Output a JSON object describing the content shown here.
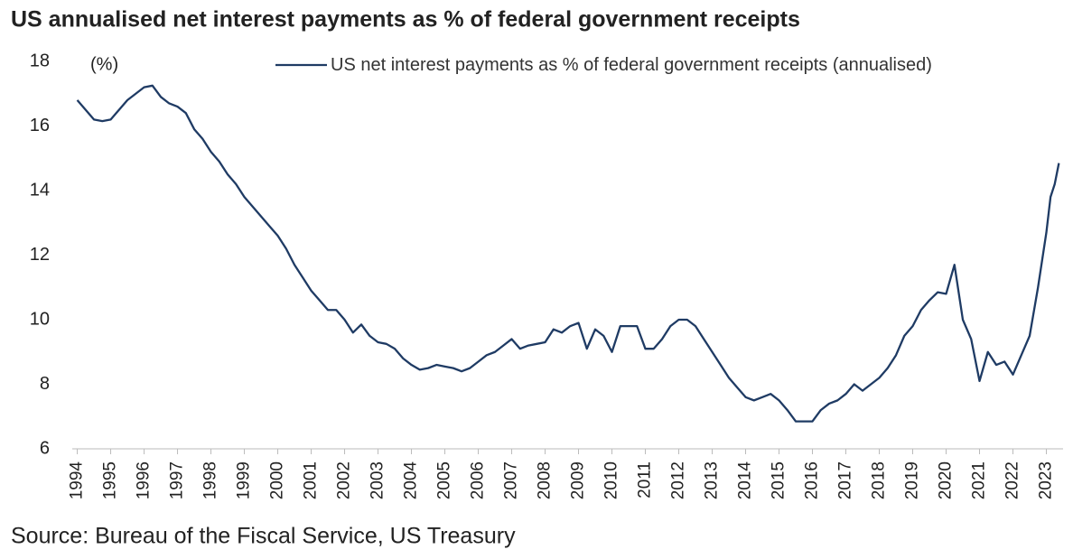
{
  "chart_data": {
    "type": "line",
    "title": "US annualised net interest payments as % of federal government receipts",
    "y_unit": "(%)",
    "source": "Source: Bureau of the Fiscal Service, US Treasury",
    "x": [
      1994,
      1994.25,
      1994.5,
      1994.75,
      1995,
      1995.25,
      1995.5,
      1995.75,
      1996,
      1996.25,
      1996.5,
      1996.75,
      1997,
      1997.25,
      1997.5,
      1997.75,
      1998,
      1998.25,
      1998.5,
      1998.75,
      1999,
      1999.25,
      1999.5,
      1999.75,
      2000,
      2000.25,
      2000.5,
      2000.75,
      2001,
      2001.25,
      2001.5,
      2001.75,
      2002,
      2002.25,
      2002.5,
      2002.75,
      2003,
      2003.25,
      2003.5,
      2003.75,
      2004,
      2004.25,
      2004.5,
      2004.75,
      2005,
      2005.25,
      2005.5,
      2005.75,
      2006,
      2006.25,
      2006.5,
      2006.75,
      2007,
      2007.25,
      2007.5,
      2007.75,
      2008,
      2008.25,
      2008.5,
      2008.75,
      2009,
      2009.25,
      2009.5,
      2009.75,
      2010,
      2010.25,
      2010.5,
      2010.75,
      2011,
      2011.25,
      2011.5,
      2011.75,
      2012,
      2012.25,
      2012.5,
      2012.75,
      2013,
      2013.25,
      2013.5,
      2013.75,
      2014,
      2014.25,
      2014.5,
      2014.75,
      2015,
      2015.25,
      2015.5,
      2015.75,
      2016,
      2016.25,
      2016.5,
      2016.75,
      2017,
      2017.25,
      2017.5,
      2017.75,
      2018,
      2018.25,
      2018.5,
      2018.75,
      2019,
      2019.25,
      2019.5,
      2019.75,
      2020,
      2020.25,
      2020.5,
      2020.75,
      2021,
      2021.25,
      2021.5,
      2021.75,
      2022,
      2022.25,
      2022.5,
      2022.75,
      2023,
      2023.125,
      2023.25,
      2023.375
    ],
    "series": [
      {
        "name": "US net interest payments as % of federal government receipts (annualised)",
        "color": "#1f3b64",
        "values": [
          16.8,
          16.5,
          16.2,
          16.15,
          16.2,
          16.5,
          16.8,
          17.0,
          17.2,
          17.25,
          16.9,
          16.7,
          16.6,
          16.4,
          15.9,
          15.6,
          15.2,
          14.9,
          14.5,
          14.2,
          13.8,
          13.5,
          13.2,
          12.9,
          12.6,
          12.2,
          11.7,
          11.3,
          10.9,
          10.6,
          10.3,
          10.3,
          10.0,
          9.6,
          9.85,
          9.5,
          9.3,
          9.25,
          9.1,
          8.8,
          8.6,
          8.45,
          8.5,
          8.6,
          8.55,
          8.5,
          8.4,
          8.5,
          8.7,
          8.9,
          9.0,
          9.2,
          9.4,
          9.1,
          9.2,
          9.25,
          9.3,
          9.7,
          9.6,
          9.8,
          9.9,
          9.1,
          9.7,
          9.5,
          9.0,
          9.8,
          9.8,
          9.8,
          9.1,
          9.1,
          9.4,
          9.8,
          10.0,
          10.0,
          9.8,
          9.4,
          9.0,
          8.6,
          8.2,
          7.9,
          7.6,
          7.5,
          7.6,
          7.7,
          7.5,
          7.2,
          6.85,
          6.85,
          6.85,
          7.2,
          7.4,
          7.5,
          7.7,
          8.0,
          7.8,
          8.0,
          8.2,
          8.5,
          8.9,
          9.5,
          9.8,
          10.3,
          10.6,
          10.85,
          10.8,
          11.7,
          10.0,
          9.4,
          8.1,
          9.0,
          8.6,
          8.7,
          8.3,
          8.9,
          9.5,
          11.0,
          12.7,
          13.8,
          14.2,
          14.85
        ]
      }
    ],
    "xlim": [
      1993.85,
      2023.5
    ],
    "xticks": [
      1994,
      1995,
      1996,
      1997,
      1998,
      1999,
      2000,
      2001,
      2002,
      2003,
      2004,
      2005,
      2006,
      2007,
      2008,
      2009,
      2010,
      2011,
      2012,
      2013,
      2014,
      2015,
      2016,
      2017,
      2018,
      2019,
      2020,
      2021,
      2022,
      2023
    ],
    "ylim": [
      6,
      18
    ],
    "yticks": [
      6,
      8,
      10,
      12,
      14,
      16,
      18
    ],
    "grid": false
  }
}
